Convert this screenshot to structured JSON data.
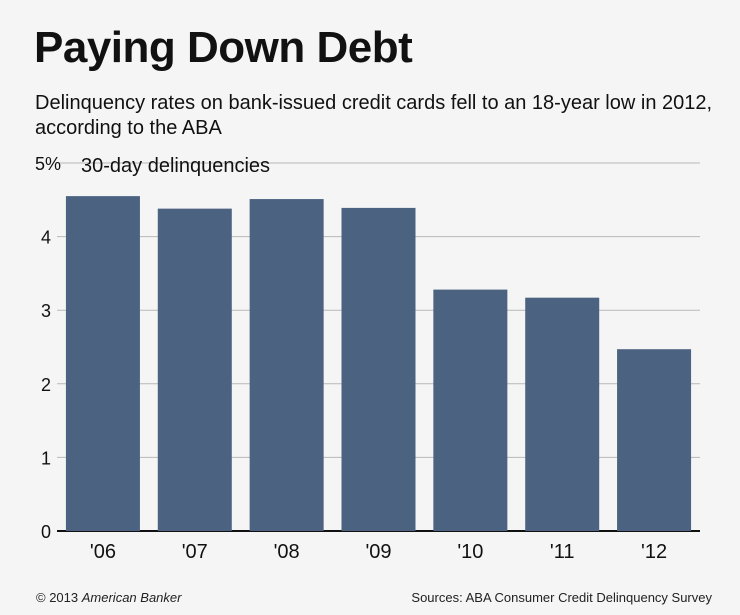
{
  "title": "Paying Down Debt",
  "subtitle": "Delinquency rates on bank-issued credit cards fell to an 18-year low in 2012, according to the ABA",
  "footer": {
    "copyright_prefix": "© 2013",
    "copyright_brand": "American Banker",
    "sources": "Sources: ABA Consumer Credit Delinquency Survey"
  },
  "chart_data": {
    "type": "bar",
    "title": "30-day delinquencies",
    "categories": [
      "'06",
      "'07",
      "'08",
      "'09",
      "'10",
      "'11",
      "'12"
    ],
    "values": [
      4.55,
      4.38,
      4.51,
      4.39,
      3.28,
      3.17,
      2.47
    ],
    "xlabel": "",
    "ylabel": "",
    "yticks": [
      0,
      1,
      2,
      3,
      4,
      5
    ],
    "ytick_labels": [
      "0",
      "1",
      "2",
      "3",
      "4",
      "5%"
    ],
    "ylim": [
      0,
      5
    ],
    "grid": true,
    "bar_color": "#4b6280"
  }
}
